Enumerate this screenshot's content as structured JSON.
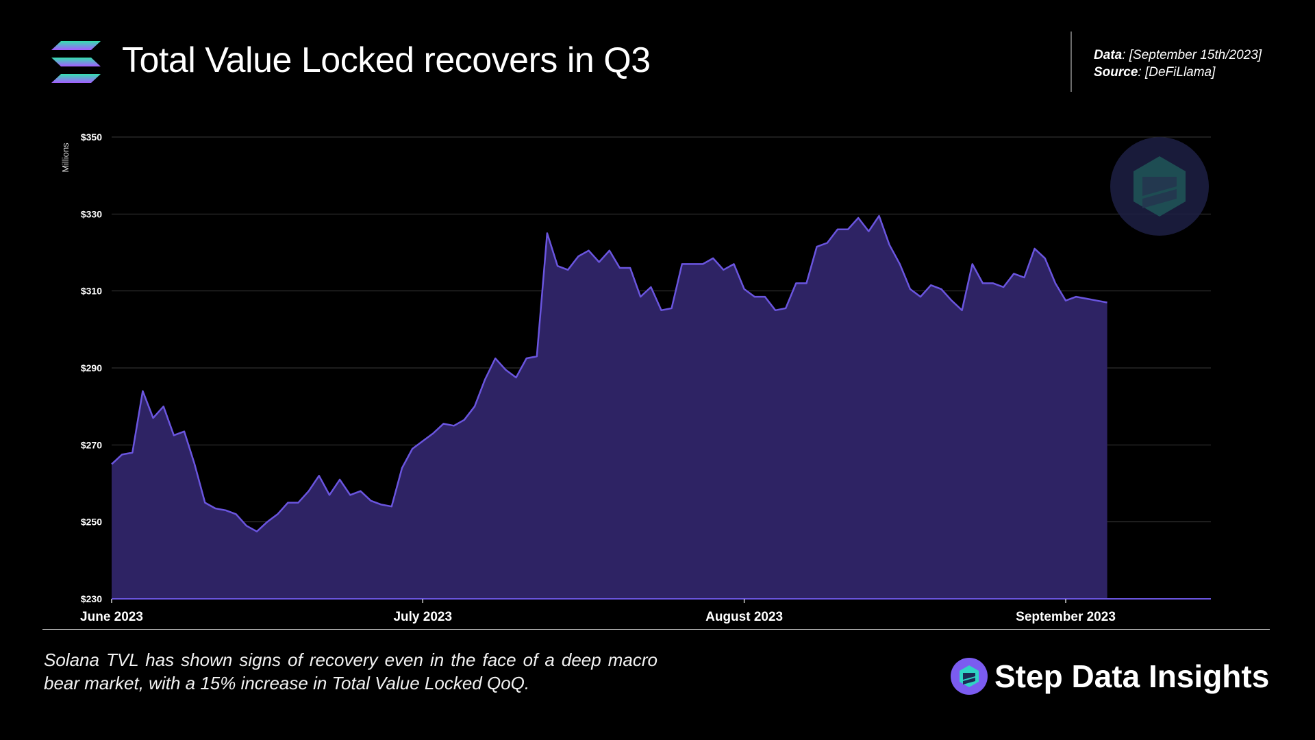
{
  "header": {
    "title": "Total Value Locked recovers in Q3",
    "data_label": "Data",
    "data_value": ": [September 15th/2023]",
    "source_label": "Source",
    "source_value": ": [DeFiLlama]"
  },
  "footer": {
    "caption": "Solana TVL has shown signs of recovery even in the face of a deep macro bear market, with a 15% increase in Total Value Locked QoQ.",
    "brand": "Step Data Insights"
  },
  "colors": {
    "fill": "#2e2364",
    "line": "#6a55df",
    "grid": "#3a3a3a",
    "accent_gradient": [
      "#34e0b0",
      "#9945ff"
    ]
  },
  "chart_data": {
    "type": "area",
    "title": "",
    "ylabel": "Millions",
    "xlabel": "",
    "ylim": [
      230,
      350
    ],
    "xlim": [
      "2023-06-01",
      "2023-09-15"
    ],
    "y_ticks": [
      230,
      250,
      270,
      290,
      310,
      330,
      350
    ],
    "y_tick_labels": [
      "$230",
      "$250",
      "$270",
      "$290",
      "$310",
      "$330",
      "$350"
    ],
    "x_ticks": [
      "2023-06-01",
      "2023-07-01",
      "2023-08-01",
      "2023-09-01"
    ],
    "x_tick_labels": [
      "June 2023",
      "July 2023",
      "August 2023",
      "September 2023"
    ],
    "grid": true,
    "series": [
      {
        "x": [
          "2023-06-01",
          "2023-06-02",
          "2023-06-03",
          "2023-06-04",
          "2023-06-05",
          "2023-06-06",
          "2023-06-07",
          "2023-06-08",
          "2023-06-09",
          "2023-06-10",
          "2023-06-11",
          "2023-06-12",
          "2023-06-13",
          "2023-06-14",
          "2023-06-15",
          "2023-06-16",
          "2023-06-17",
          "2023-06-18",
          "2023-06-19",
          "2023-06-20",
          "2023-06-21",
          "2023-06-22",
          "2023-06-23",
          "2023-06-24",
          "2023-06-25",
          "2023-06-26",
          "2023-06-27",
          "2023-06-28",
          "2023-06-29",
          "2023-06-30",
          "2023-07-01",
          "2023-07-02",
          "2023-07-03",
          "2023-07-04",
          "2023-07-05",
          "2023-07-06",
          "2023-07-07",
          "2023-07-08",
          "2023-07-09",
          "2023-07-10",
          "2023-07-11",
          "2023-07-12",
          "2023-07-13",
          "2023-07-14",
          "2023-07-15",
          "2023-07-16",
          "2023-07-17",
          "2023-07-18",
          "2023-07-19",
          "2023-07-20",
          "2023-07-21",
          "2023-07-22",
          "2023-07-23",
          "2023-07-24",
          "2023-07-25",
          "2023-07-26",
          "2023-07-27",
          "2023-07-28",
          "2023-07-29",
          "2023-07-30",
          "2023-07-31",
          "2023-08-01",
          "2023-08-02",
          "2023-08-03",
          "2023-08-04",
          "2023-08-05",
          "2023-08-06",
          "2023-08-07",
          "2023-08-08",
          "2023-08-09",
          "2023-08-10",
          "2023-08-11",
          "2023-08-12",
          "2023-08-13",
          "2023-08-14",
          "2023-08-15",
          "2023-08-16",
          "2023-08-17",
          "2023-08-18",
          "2023-08-19",
          "2023-08-20",
          "2023-08-21",
          "2023-08-22",
          "2023-08-23",
          "2023-08-24",
          "2023-08-25",
          "2023-08-26",
          "2023-08-27",
          "2023-08-28",
          "2023-08-29",
          "2023-08-30",
          "2023-08-31",
          "2023-09-01",
          "2023-09-02",
          "2023-09-03",
          "2023-09-04",
          "2023-09-05"
        ],
        "values": [
          265,
          267.5,
          268,
          284,
          277,
          280,
          272.5,
          273.5,
          265,
          255,
          253.5,
          253,
          252,
          249,
          247.5,
          250,
          252,
          255,
          255,
          258,
          262,
          257,
          261,
          257,
          258,
          255.5,
          254.5,
          254,
          264,
          269,
          271,
          273,
          275.5,
          275,
          276.5,
          280,
          287,
          292.5,
          289.5,
          287.5,
          292.5,
          293,
          325,
          316.5,
          315.5,
          319,
          320.5,
          317.5,
          320.5,
          316,
          316,
          308.5,
          311,
          305,
          305.5,
          317,
          317,
          317,
          318.5,
          315.5,
          317,
          310.5,
          308.5,
          308.5,
          305,
          305.5,
          312,
          312,
          321.5,
          322.5,
          326,
          326,
          329,
          325.5,
          329.5,
          322,
          317,
          310.5,
          308.5,
          311.5,
          310.5,
          307.5,
          305,
          317,
          312,
          312,
          311,
          314.5,
          313.5,
          321,
          318.5,
          312,
          307.5,
          308.5,
          308,
          307.5,
          307
        ]
      }
    ]
  }
}
